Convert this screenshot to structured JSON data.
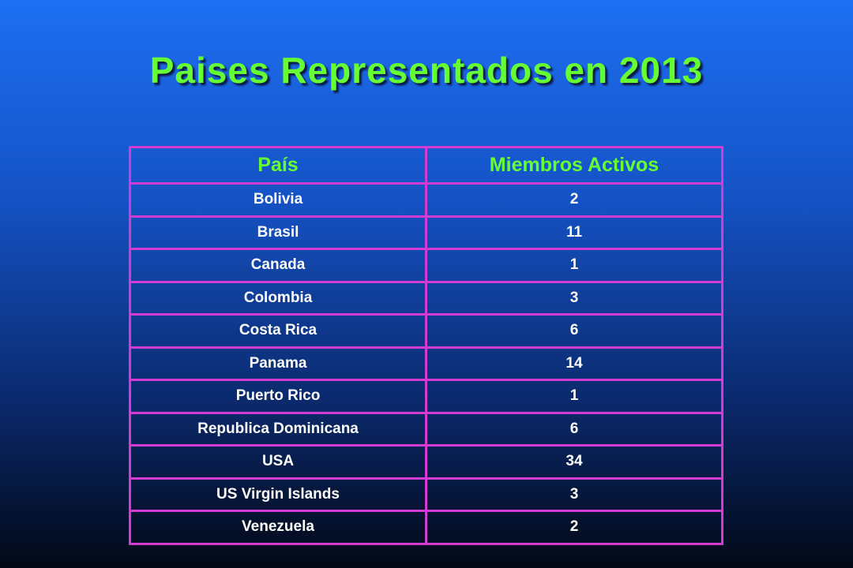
{
  "header": {
    "title": "Paises Representados en 2013"
  },
  "table": {
    "columns": [
      "País",
      "Miembros Activos"
    ],
    "rows": [
      [
        "Bolivia",
        2
      ],
      [
        "Brasil",
        11
      ],
      [
        "Canada",
        1
      ],
      [
        "Colombia",
        3
      ],
      [
        "Costa Rica",
        6
      ],
      [
        "Panama",
        14
      ],
      [
        "Puerto Rico",
        1
      ],
      [
        "Republica Dominicana",
        6
      ],
      [
        "USA",
        34
      ],
      [
        "US Virgin Islands",
        3
      ],
      [
        "Venezuela",
        2
      ]
    ]
  }
}
